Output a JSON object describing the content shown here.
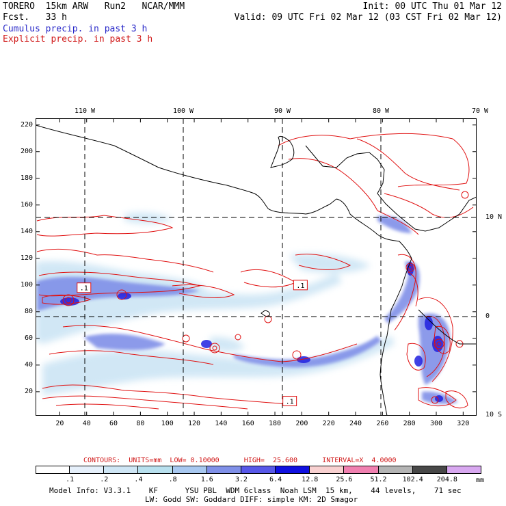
{
  "header": {
    "line1_left": "TORERO  15km ARW   Run2   NCAR/MMM",
    "line1_right": "Init: 00 UTC Thu 01 Mar 12",
    "line2_left": "Fcst.   33 h",
    "line2_right": "Valid: 09 UTC Fri 02 Mar 12 (03 CST Fri 02 Mar 12)",
    "line3": "Cumulus precip. in past 3 h",
    "line4": "Explicit precip. in past 3 h"
  },
  "map": {
    "top_lon_labels": [
      "110 W",
      "100 W",
      "90 W",
      "80 W",
      "70 W"
    ],
    "right_lat_labels": [
      "10 N",
      "0",
      "10 S"
    ],
    "y_ticks": [
      "220",
      "200",
      "180",
      "160",
      "140",
      "120",
      "100",
      "80",
      "60",
      "40",
      "20"
    ],
    "x_ticks": [
      "20",
      "40",
      "60",
      "80",
      "100",
      "120",
      "140",
      "160",
      "180",
      "200",
      "220",
      "240",
      "260",
      "280",
      "300",
      "320"
    ],
    "markers": [
      {
        "text": ".1",
        "gx": 38,
        "gy": 98
      },
      {
        "text": ".1",
        "gx": 199,
        "gy": 100
      },
      {
        "text": ".1",
        "gx": 191,
        "gy": 13
      }
    ],
    "colors": {
      "coast": "#000000",
      "grid": "#000000",
      "explicit_contour": "#e01010",
      "cumulus_light": "#cfe6f5",
      "cumulus_mid": "#8090e8",
      "cumulus_dark": "#2020e0"
    }
  },
  "contour_info": {
    "label": "CONTOURS:  UNITS=mm  LOW= 0.10000      HIGH=  25.600      INTERVAL=X  4.0000"
  },
  "colorbar": {
    "labels": [
      ".1",
      ".2",
      ".4",
      ".8",
      "1.6",
      "3.2",
      "6.4",
      "12.8",
      "25.6",
      "51.2",
      "102.4",
      "204.8"
    ],
    "unit": "mm",
    "colors": [
      "#ffffff",
      "#e6f0fb",
      "#cfe6f5",
      "#b8e0ee",
      "#a8c8f0",
      "#8090e8",
      "#5858e8",
      "#1010e0",
      "#f8d0d0",
      "#f080b0",
      "#b4b4b4",
      "#484848",
      "#d8a8f0"
    ]
  },
  "footer": {
    "line1": "Model Info: V3.3.1    KF      YSU PBL  WDM 6class  Noah LSM  15 km,    44 levels,    71 sec",
    "line2": "LW: Godd SW: Goddard DIFF: simple KM: 2D Smagor"
  }
}
